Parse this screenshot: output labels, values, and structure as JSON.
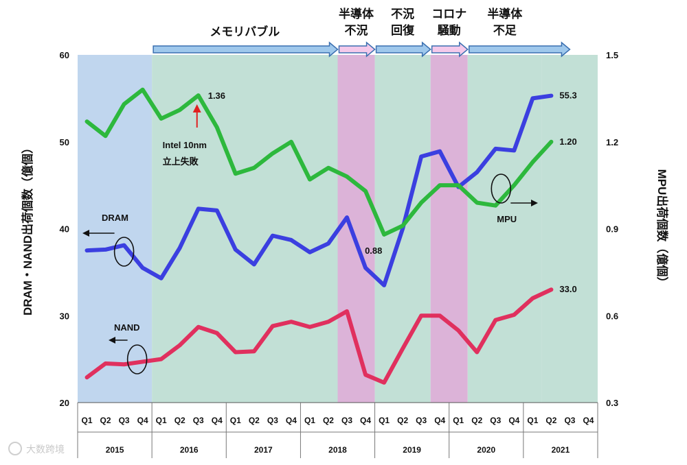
{
  "chart_data": {
    "type": "line",
    "left_axis_title": "DRAM・NAND出荷個数（億個）",
    "right_axis_title": "MPU出荷個数（億個）",
    "left_ylim": [
      20,
      60
    ],
    "right_ylim": [
      0.3,
      1.5
    ],
    "left_ticks": [
      "20",
      "30",
      "40",
      "50",
      "60"
    ],
    "right_ticks": [
      "0.3",
      "0.6",
      "0.9",
      "1.2",
      "1.5"
    ],
    "quarters": [
      "Q1",
      "Q2",
      "Q3",
      "Q4"
    ],
    "years": [
      "2015",
      "2016",
      "2017",
      "2018",
      "2019",
      "2020",
      "2021"
    ],
    "series": [
      {
        "name": "DRAM",
        "axis": "left",
        "color": "#3b3fe0",
        "values": [
          37.5,
          37.6,
          38.1,
          35.5,
          34.3,
          37.8,
          42.3,
          42.1,
          37.6,
          35.9,
          39.2,
          38.7,
          37.3,
          38.3,
          41.3,
          35.5,
          33.5,
          40.0,
          48.3,
          48.9,
          44.8,
          46.5,
          49.2,
          49.0,
          55.0,
          55.3,
          null,
          null
        ]
      },
      {
        "name": "NAND",
        "axis": "left",
        "color": "#e0305e",
        "values": [
          22.9,
          24.5,
          24.4,
          24.7,
          25.0,
          26.6,
          28.7,
          28.0,
          25.8,
          25.9,
          28.8,
          29.3,
          28.7,
          29.3,
          30.5,
          23.2,
          22.3,
          26.2,
          30.0,
          30.0,
          28.3,
          25.8,
          29.5,
          30.1,
          32.0,
          33.0,
          null,
          null
        ]
      },
      {
        "name": "MPU",
        "axis": "right",
        "color": "#2db83d",
        "values": [
          1.27,
          1.22,
          1.33,
          1.38,
          1.28,
          1.31,
          1.36,
          1.25,
          1.09,
          1.11,
          1.16,
          1.2,
          1.07,
          1.11,
          1.08,
          1.03,
          0.88,
          0.91,
          0.99,
          1.05,
          1.05,
          0.99,
          0.98,
          1.05,
          1.13,
          1.2,
          null,
          null
        ]
      }
    ],
    "phases": [
      {
        "label": [
          "メモリバブル"
        ],
        "start": 4,
        "end": 14,
        "bg": "#c2e0d6",
        "arrow": "#9fc8ec"
      },
      {
        "label": [
          "半導体",
          "不況"
        ],
        "start": 14,
        "end": 16,
        "bg": "#dcb3d8",
        "arrow": "#f4c9ea"
      },
      {
        "label": [
          "不況",
          "回復"
        ],
        "start": 16,
        "end": 19,
        "bg": "#c2e0d6",
        "arrow": "#9fc8ec"
      },
      {
        "label": [
          "コロナ",
          "騒動"
        ],
        "start": 19,
        "end": 21,
        "bg": "#dcb3d8",
        "arrow": "#f4c9ea"
      },
      {
        "label": [
          "半導体",
          "不足"
        ],
        "start": 21,
        "end": 25,
        "bg": "#c2e0d6",
        "arrow": "#9fc8ec"
      }
    ],
    "pre_phase_bg": "#c0d6ee",
    "annotations": {
      "intel_peak": "1.36",
      "intel_note": [
        "Intel 10nm",
        "立上失敗"
      ],
      "mpu_low": "0.88",
      "dram_end": "55.3",
      "mpu_end": "1.20",
      "nand_end": "33.0",
      "dram_legend": "DRAM",
      "nand_legend": "NAND",
      "mpu_legend": "MPU"
    }
  },
  "watermark": "大数跨境"
}
